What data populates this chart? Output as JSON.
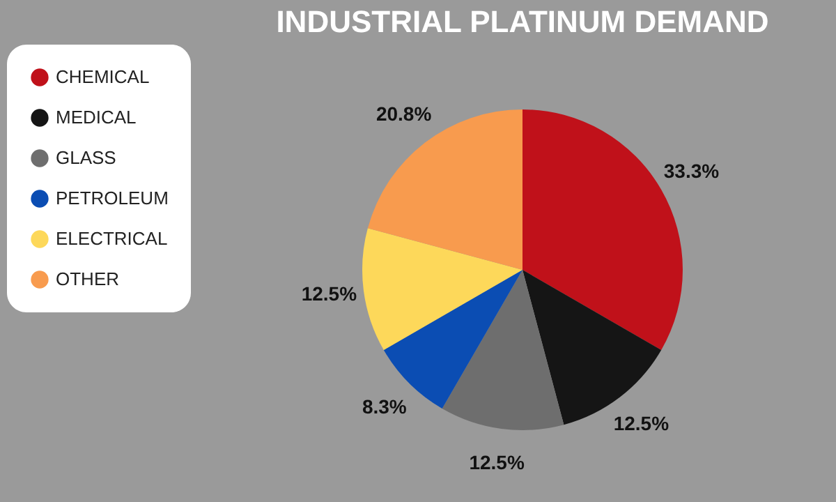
{
  "chart_data": {
    "type": "pie",
    "title": "INDUSTRIAL PLATINUM DEMAND",
    "categories": [
      "CHEMICAL",
      "MEDICAL",
      "GLASS",
      "PETROLEUM",
      "ELECTRICAL",
      "OTHER"
    ],
    "values": [
      33.3,
      12.5,
      12.5,
      8.3,
      12.5,
      20.8
    ],
    "colors": [
      "#c0111a",
      "#151515",
      "#6e6e6e",
      "#0b4db3",
      "#fdd85a",
      "#f89b4e"
    ],
    "value_labels": [
      "33.3%",
      "12.5%",
      "12.5%",
      "8.3%",
      "12.5%",
      "20.8%"
    ],
    "legend": "left"
  }
}
